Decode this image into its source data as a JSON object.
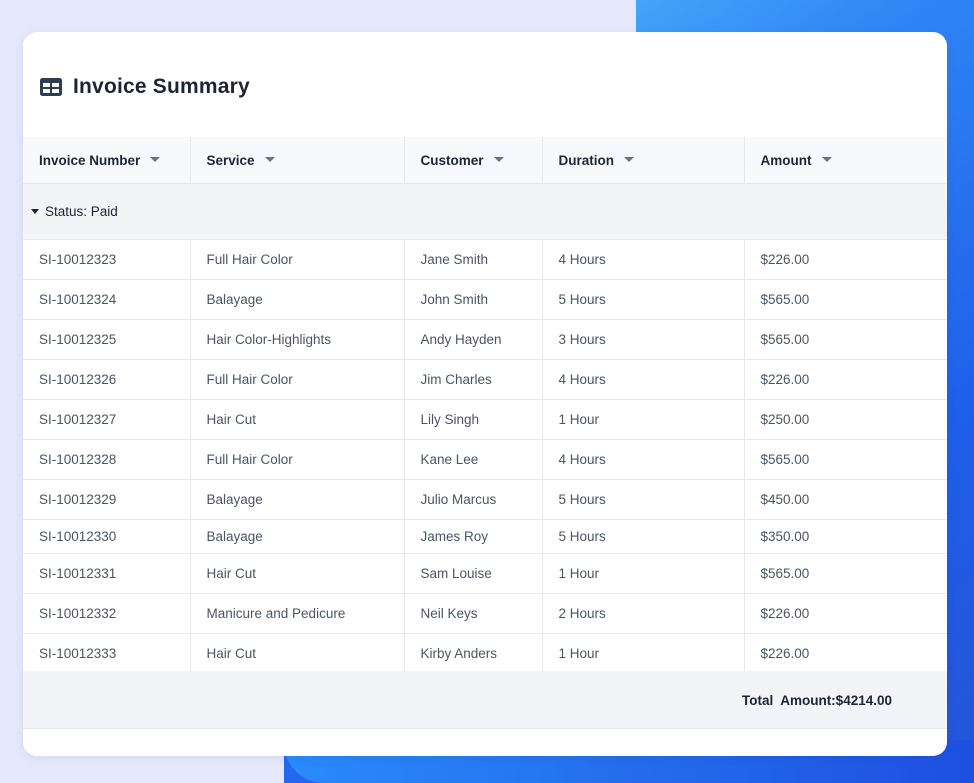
{
  "header": {
    "title": "Invoice Summary",
    "icon": "table-icon"
  },
  "columns": [
    "Invoice Number",
    "Service",
    "Customer",
    "Duration",
    "Amount"
  ],
  "group": {
    "label": "Status: Paid"
  },
  "rows": [
    {
      "invoice": "SI-10012323",
      "service": "Full Hair Color",
      "customer": "Jane Smith",
      "duration": "4 Hours",
      "amount": "$226.00"
    },
    {
      "invoice": "SI-10012324",
      "service": "Balayage",
      "customer": "John Smith",
      "duration": "5 Hours",
      "amount": "$565.00"
    },
    {
      "invoice": "SI-10012325",
      "service": "Hair Color-Highlights",
      "customer": "Andy Hayden",
      "duration": "3 Hours",
      "amount": "$565.00"
    },
    {
      "invoice": "SI-10012326",
      "service": "Full Hair Color",
      "customer": "Jim Charles",
      "duration": "4 Hours",
      "amount": "$226.00"
    },
    {
      "invoice": "SI-10012327",
      "service": "Hair Cut",
      "customer": "Lily Singh",
      "duration": "1 Hour",
      "amount": "$250.00"
    },
    {
      "invoice": "SI-10012328",
      "service": "Full Hair Color",
      "customer": "Kane Lee",
      "duration": "4 Hours",
      "amount": "$565.00"
    },
    {
      "invoice": "SI-10012329",
      "service": "Balayage",
      "customer": "Julio Marcus",
      "duration": "5 Hours",
      "amount": "$450.00"
    },
    {
      "invoice": "SI-10012330",
      "service": "Balayage",
      "customer": "James Roy",
      "duration": "5 Hours",
      "amount": "$350.00"
    },
    {
      "invoice": "SI-10012331",
      "service": "Hair Cut",
      "customer": "Sam Louise",
      "duration": "1 Hour",
      "amount": "$565.00"
    },
    {
      "invoice": "SI-10012332",
      "service": "Manicure and Pedicure",
      "customer": "Neil Keys",
      "duration": "2 Hours",
      "amount": "$226.00"
    },
    {
      "invoice": "SI-10012333",
      "service": "Hair Cut",
      "customer": "Kirby Anders",
      "duration": "1 Hour",
      "amount": "$226.00"
    }
  ],
  "footer": {
    "total": "Total  Amount:$4214.00"
  },
  "colors": {
    "accent": "#2f86f5",
    "text": "#1e2433",
    "muted": "#4b5563"
  }
}
